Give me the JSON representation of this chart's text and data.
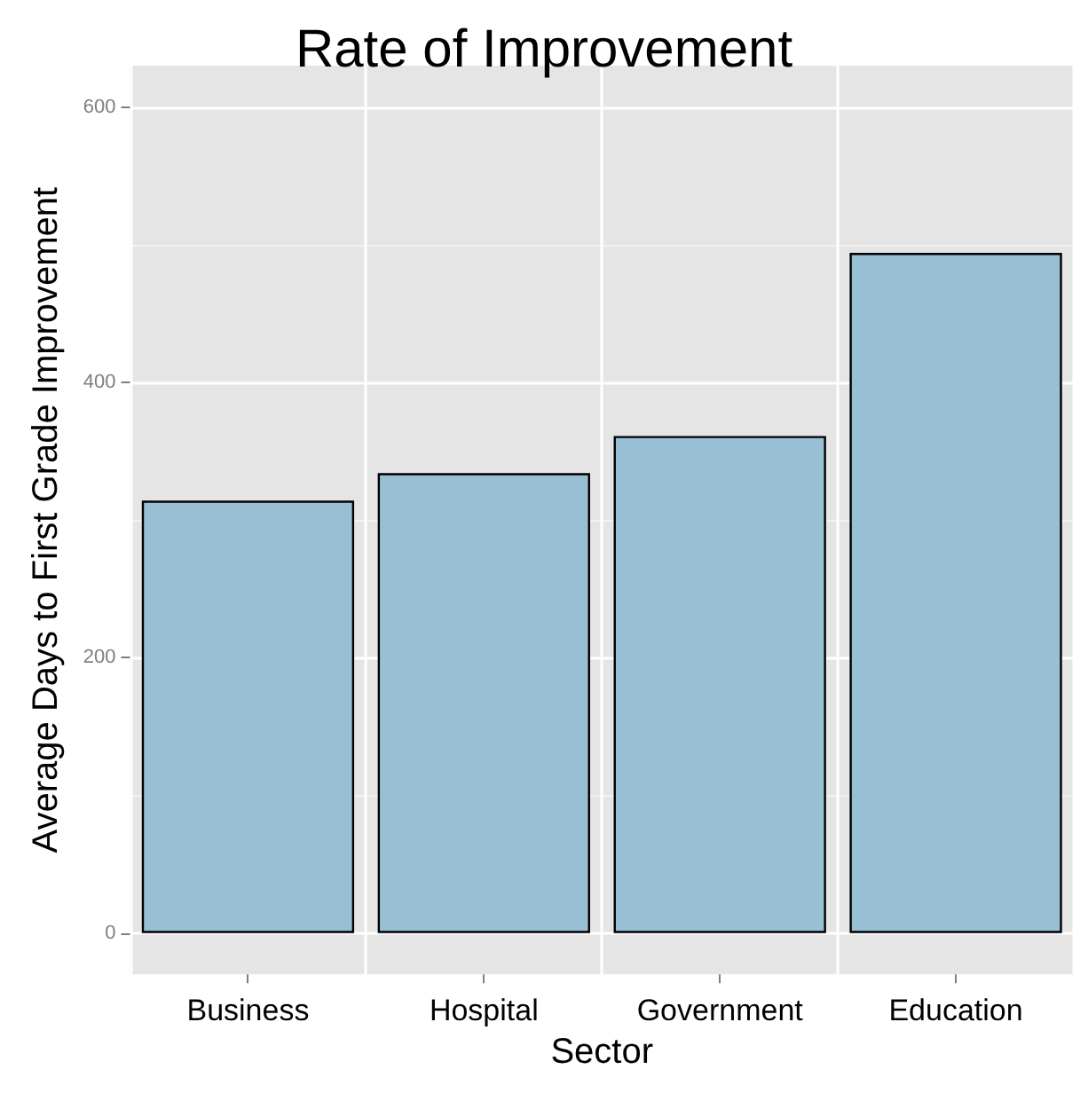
{
  "chart_data": {
    "type": "bar",
    "title": "Rate of Improvement",
    "xlabel": "Sector",
    "ylabel": "Average Days to First Grade Improvement",
    "categories": [
      "Business",
      "Hospital",
      "Government",
      "Education"
    ],
    "values": [
      314,
      334,
      361,
      494
    ],
    "color": "#99bfd5",
    "ylim": [
      -30,
      630
    ],
    "yticks": [
      0,
      200,
      400,
      600
    ],
    "grid": true
  }
}
